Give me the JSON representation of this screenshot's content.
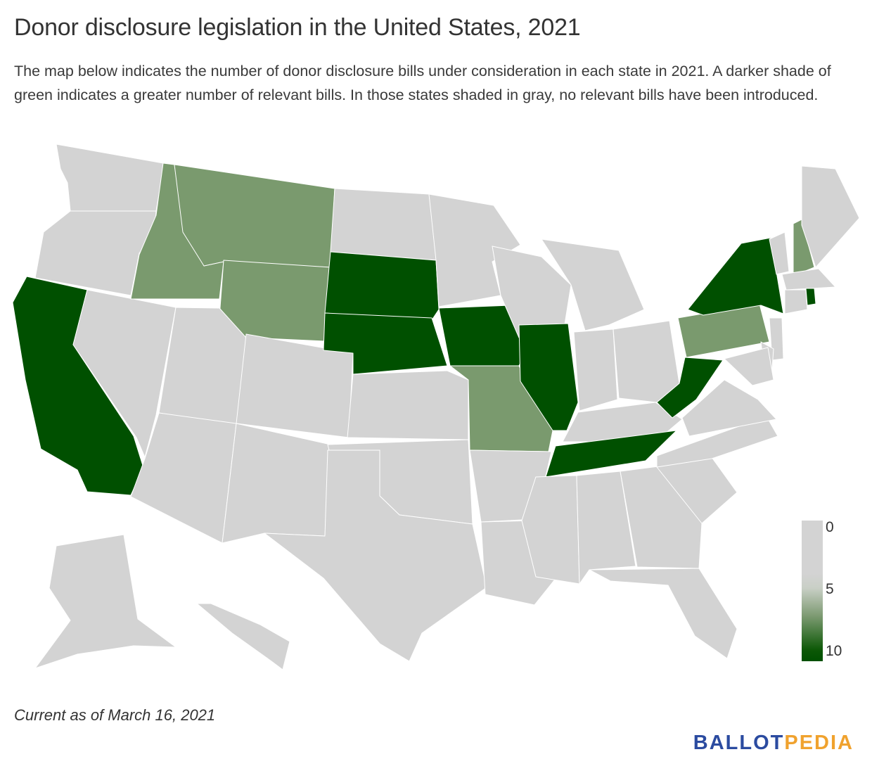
{
  "title": "Donor disclosure legislation in the United States, 2021",
  "subtitle": "The map below indicates the number of donor disclosure bills under consideration in each state in 2021. A darker shade of green indicates a greater number of relevant bills. In those states shaded in gray, no relevant bills have been introduced.",
  "legend": {
    "ticks": [
      "0",
      "5",
      "10"
    ],
    "colors": {
      "low": "#d3d3d3",
      "mid": "#7a9a6e",
      "high": "#005000"
    }
  },
  "note": "Current as of March 16, 2021",
  "logo": {
    "part1": "BALLOT",
    "part2": "PEDIA"
  },
  "map_data": {
    "type": "choropleth",
    "region": "United States",
    "bill_counts_approx": {
      "highlighted_high": [
        "California",
        "South Dakota",
        "Nebraska",
        "Iowa",
        "Illinois",
        "Tennessee",
        "West Virginia",
        "New York",
        "Rhode Island"
      ],
      "highlighted_mid": [
        "Idaho",
        "Montana",
        "Wyoming",
        "Missouri",
        "Pennsylvania",
        "New Hampshire"
      ]
    }
  }
}
